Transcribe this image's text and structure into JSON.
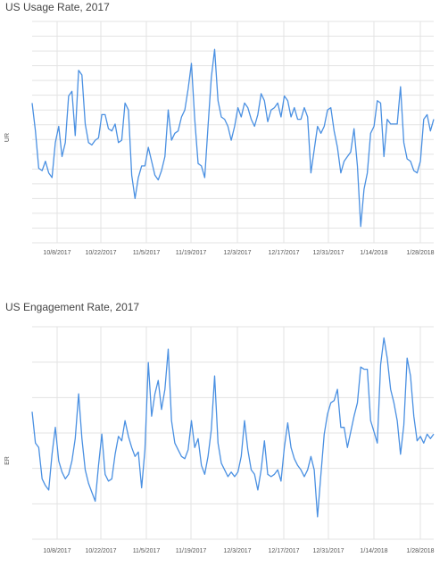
{
  "chart_data": [
    {
      "type": "line",
      "title": "US Usage Rate, 2017",
      "ylabel": "UR",
      "xlabel": "",
      "x_ticks": [
        "10/8/2017",
        "10/22/2017",
        "11/5/2017",
        "11/19/2017",
        "12/3/2017",
        "12/17/2017",
        "12/31/2017",
        "1/14/2018",
        "1/28/2018"
      ],
      "color": "#4a90e2",
      "series": [
        {
          "values": [
            6.5,
            5.3,
            3.7,
            3.6,
            4.0,
            3.5,
            3.3,
            4.8,
            5.5,
            4.2,
            4.8,
            6.8,
            7.0,
            5.1,
            7.9,
            7.7,
            5.6,
            4.8,
            4.7,
            4.9,
            5.0,
            6.0,
            6.0,
            5.4,
            5.3,
            5.6,
            4.8,
            4.9,
            6.5,
            6.2,
            3.4,
            2.4,
            3.3,
            3.8,
            3.8,
            4.6,
            4.0,
            3.4,
            3.2,
            3.6,
            4.2,
            6.2,
            4.9,
            5.2,
            5.3,
            5.9,
            6.2,
            7.1,
            8.2,
            5.8,
            3.9,
            3.8,
            3.3,
            5.5,
            7.6,
            8.8,
            6.6,
            5.9,
            5.8,
            5.5,
            4.9,
            5.5,
            6.3,
            5.9,
            6.5,
            6.3,
            5.8,
            5.5,
            6.0,
            6.9,
            6.6,
            5.7,
            6.2,
            6.3,
            6.5,
            5.9,
            6.8,
            6.6,
            5.9,
            6.3,
            5.8,
            5.8,
            6.3,
            5.9,
            3.5,
            4.5,
            5.5,
            5.2,
            5.5,
            6.2,
            6.3,
            5.3,
            4.6,
            3.5,
            4.0,
            4.2,
            4.4,
            5.4,
            3.8,
            1.2,
            2.8,
            3.5,
            5.2,
            5.5,
            6.6,
            6.5,
            4.2,
            5.8,
            5.6,
            5.6,
            5.6,
            7.2,
            4.8,
            4.1,
            4.0,
            3.6,
            3.5,
            4.0,
            5.8,
            6.0,
            5.3,
            5.8
          ]
        }
      ]
    },
    {
      "type": "line",
      "title": "US Engagement Rate, 2017",
      "ylabel": "ER",
      "xlabel": "",
      "x_ticks": [
        "10/8/2017",
        "10/22/2017",
        "11/5/2017",
        "11/19/2017",
        "12/3/2017",
        "12/17/2017",
        "12/31/2017",
        "1/14/2018",
        "1/28/2018"
      ],
      "color": "#4a90e2",
      "series": [
        {
          "values": [
            6.2,
            4.8,
            4.6,
            3.2,
            2.9,
            2.7,
            4.3,
            5.5,
            4.0,
            3.5,
            3.2,
            3.4,
            4.0,
            5.0,
            7.0,
            5.0,
            3.6,
            3.0,
            2.6,
            2.2,
            3.8,
            5.2,
            3.4,
            3.1,
            3.2,
            4.3,
            5.1,
            4.9,
            5.8,
            5.1,
            4.6,
            4.2,
            4.4,
            2.8,
            4.5,
            8.4,
            6.0,
            7.0,
            7.6,
            6.3,
            7.2,
            9.0,
            5.8,
            4.8,
            4.5,
            4.2,
            4.1,
            4.5,
            5.8,
            4.6,
            5.0,
            3.8,
            3.4,
            4.2,
            5.4,
            7.8,
            4.8,
            3.9,
            3.6,
            3.3,
            3.5,
            3.3,
            3.5,
            4.2,
            5.8,
            4.5,
            3.6,
            3.4,
            2.7,
            3.6,
            4.9,
            3.4,
            3.3,
            3.4,
            3.6,
            3.1,
            4.6,
            5.7,
            4.6,
            4.1,
            3.8,
            3.6,
            3.3,
            3.6,
            4.2,
            3.6,
            1.5,
            3.4,
            5.2,
            6.1,
            6.6,
            6.7,
            7.2,
            5.5,
            5.5,
            4.6,
            5.3,
            6.0,
            6.6,
            8.2,
            8.1,
            8.1,
            5.8,
            5.3,
            4.8,
            8.3,
            9.5,
            8.6,
            7.2,
            6.6,
            5.8,
            4.3,
            5.6,
            8.6,
            7.8,
            6.0,
            4.9,
            5.1,
            4.8,
            5.2,
            5.0,
            5.2
          ]
        }
      ]
    }
  ]
}
